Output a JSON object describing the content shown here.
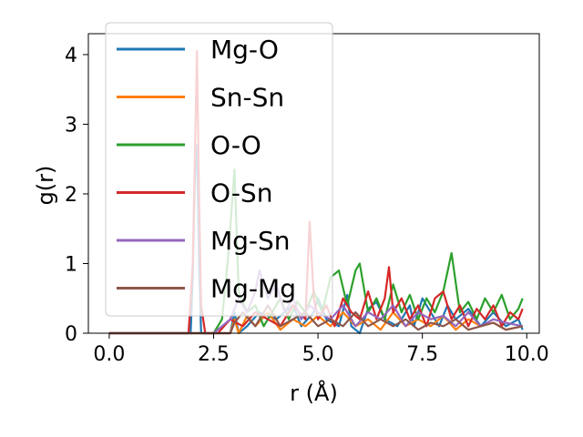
{
  "chart_data": {
    "type": "line",
    "title": "",
    "xlabel": "r (Å)",
    "ylabel": "g(r)",
    "xlim": [
      -0.5,
      10.3
    ],
    "ylim": [
      0,
      4.3
    ],
    "xticks": [
      0.0,
      2.5,
      5.0,
      7.5,
      10.0
    ],
    "xtick_labels": [
      "0.0",
      "2.5",
      "5.0",
      "7.5",
      "10.0"
    ],
    "yticks": [
      0,
      1,
      2,
      3,
      4
    ],
    "ytick_labels": [
      "0",
      "1",
      "2",
      "3",
      "4"
    ],
    "grid": false,
    "legend_position": "upper-left",
    "series": [
      {
        "name": "Mg-O",
        "color": "#1f77b4",
        "x": [
          0.0,
          1.8,
          1.95,
          2.0,
          2.05,
          2.1,
          2.15,
          2.2,
          2.3,
          2.5,
          2.9,
          3.0,
          3.1,
          3.3,
          3.6,
          4.0,
          4.4,
          4.6,
          4.9,
          5.0,
          5.2,
          5.5,
          5.7,
          5.8,
          6.0,
          6.2,
          6.4,
          6.6,
          6.9,
          7.2,
          7.3,
          7.5,
          7.7,
          7.9,
          8.1,
          8.3,
          8.6,
          8.9,
          9.2,
          9.5,
          9.8,
          9.9
        ],
        "y": [
          0.0,
          0.0,
          0.0,
          0.8,
          2.2,
          2.7,
          1.0,
          0.0,
          0.0,
          0.0,
          0.0,
          0.3,
          0.0,
          0.1,
          0.3,
          0.2,
          0.4,
          0.1,
          0.3,
          0.5,
          0.2,
          0.1,
          0.55,
          0.1,
          0.0,
          0.35,
          0.45,
          0.2,
          0.1,
          0.4,
          0.1,
          0.5,
          0.3,
          0.1,
          0.4,
          0.2,
          0.35,
          0.1,
          0.3,
          0.1,
          0.2,
          0.05
        ]
      },
      {
        "name": "Sn-Sn",
        "color": "#ff7f0e",
        "x": [
          0.0,
          2.9,
          3.0,
          3.1,
          3.3,
          3.5,
          3.8,
          4.1,
          4.4,
          4.7,
          5.0,
          5.3,
          5.6,
          5.9,
          6.2,
          6.5,
          6.8,
          7.1,
          7.4,
          7.7,
          8.0,
          8.3,
          8.6,
          8.9,
          9.2,
          9.5,
          9.9
        ],
        "y": [
          0.0,
          0.0,
          0.2,
          0.0,
          0.25,
          0.1,
          0.3,
          0.05,
          0.2,
          0.1,
          0.25,
          0.1,
          0.3,
          0.1,
          0.2,
          0.05,
          0.3,
          0.1,
          0.2,
          0.1,
          0.25,
          0.05,
          0.2,
          0.1,
          0.15,
          0.05,
          0.1
        ]
      },
      {
        "name": "O-O",
        "color": "#2ca02c",
        "x": [
          0.0,
          2.5,
          2.7,
          2.85,
          3.0,
          3.1,
          3.3,
          3.5,
          3.7,
          3.9,
          4.1,
          4.3,
          4.5,
          4.7,
          4.9,
          5.1,
          5.3,
          5.5,
          5.7,
          5.9,
          6.0,
          6.2,
          6.4,
          6.6,
          6.8,
          7.0,
          7.2,
          7.4,
          7.6,
          7.8,
          8.0,
          8.2,
          8.4,
          8.6,
          8.8,
          9.0,
          9.2,
          9.4,
          9.6,
          9.8,
          9.9
        ],
        "y": [
          0.0,
          0.0,
          0.2,
          1.1,
          2.35,
          0.6,
          0.3,
          0.4,
          0.1,
          0.3,
          0.5,
          0.2,
          0.45,
          0.3,
          0.6,
          0.3,
          0.8,
          0.9,
          0.4,
          0.9,
          1.0,
          0.3,
          0.5,
          0.2,
          0.7,
          0.3,
          0.55,
          0.2,
          0.5,
          0.3,
          0.6,
          1.15,
          0.3,
          0.45,
          0.2,
          0.5,
          0.3,
          0.55,
          0.2,
          0.35,
          0.5
        ]
      },
      {
        "name": "O-Sn",
        "color": "#d62728",
        "x": [
          0.0,
          1.9,
          2.0,
          2.05,
          2.1,
          2.15,
          2.2,
          2.3,
          2.6,
          2.9,
          3.2,
          3.5,
          3.8,
          4.1,
          4.4,
          4.7,
          4.8,
          4.9,
          5.0,
          5.2,
          5.4,
          5.6,
          5.8,
          6.0,
          6.2,
          6.4,
          6.6,
          6.7,
          6.8,
          7.0,
          7.2,
          7.4,
          7.6,
          7.8,
          8.0,
          8.2,
          8.4,
          8.6,
          8.8,
          9.0,
          9.2,
          9.4,
          9.6,
          9.8,
          9.9
        ],
        "y": [
          0.0,
          0.0,
          1.0,
          2.5,
          4.05,
          2.0,
          0.4,
          0.0,
          0.0,
          0.2,
          0.1,
          0.3,
          0.2,
          0.1,
          0.4,
          0.2,
          1.6,
          0.5,
          0.2,
          0.4,
          0.1,
          0.5,
          0.3,
          0.2,
          0.6,
          0.2,
          0.5,
          0.95,
          0.3,
          0.5,
          0.2,
          0.4,
          0.1,
          0.5,
          0.6,
          0.2,
          0.4,
          0.1,
          0.35,
          0.2,
          0.4,
          0.1,
          0.3,
          0.2,
          0.35
        ]
      },
      {
        "name": "Mg-Sn",
        "color": "#9467bd",
        "x": [
          0.0,
          2.5,
          2.9,
          3.1,
          3.3,
          3.5,
          3.6,
          3.8,
          4.0,
          4.2,
          4.4,
          4.6,
          4.8,
          5.0,
          5.3,
          5.6,
          5.9,
          6.2,
          6.5,
          6.8,
          7.1,
          7.4,
          7.7,
          8.0,
          8.3,
          8.6,
          8.9,
          9.2,
          9.5,
          9.9
        ],
        "y": [
          0.0,
          0.0,
          0.2,
          0.5,
          0.3,
          0.6,
          0.9,
          0.5,
          0.7,
          0.3,
          0.5,
          0.2,
          0.4,
          0.3,
          0.2,
          0.4,
          0.1,
          0.3,
          0.2,
          0.4,
          0.1,
          0.3,
          0.2,
          0.25,
          0.1,
          0.3,
          0.1,
          0.2,
          0.15,
          0.1
        ]
      },
      {
        "name": "Mg-Mg",
        "color": "#8c564b",
        "x": [
          0.0,
          2.9,
          3.0,
          3.2,
          3.5,
          3.8,
          4.1,
          4.4,
          4.7,
          5.0,
          5.3,
          5.6,
          5.9,
          6.2,
          6.5,
          6.8,
          7.1,
          7.4,
          7.7,
          8.0,
          8.3,
          8.6,
          8.9,
          9.2,
          9.5,
          9.9
        ],
        "y": [
          0.0,
          0.0,
          0.15,
          0.3,
          0.1,
          0.4,
          0.1,
          0.2,
          0.3,
          0.1,
          0.2,
          0.1,
          0.3,
          0.1,
          0.2,
          0.1,
          0.2,
          0.05,
          0.15,
          0.1,
          0.2,
          0.05,
          0.1,
          0.15,
          0.05,
          0.1
        ]
      }
    ]
  }
}
